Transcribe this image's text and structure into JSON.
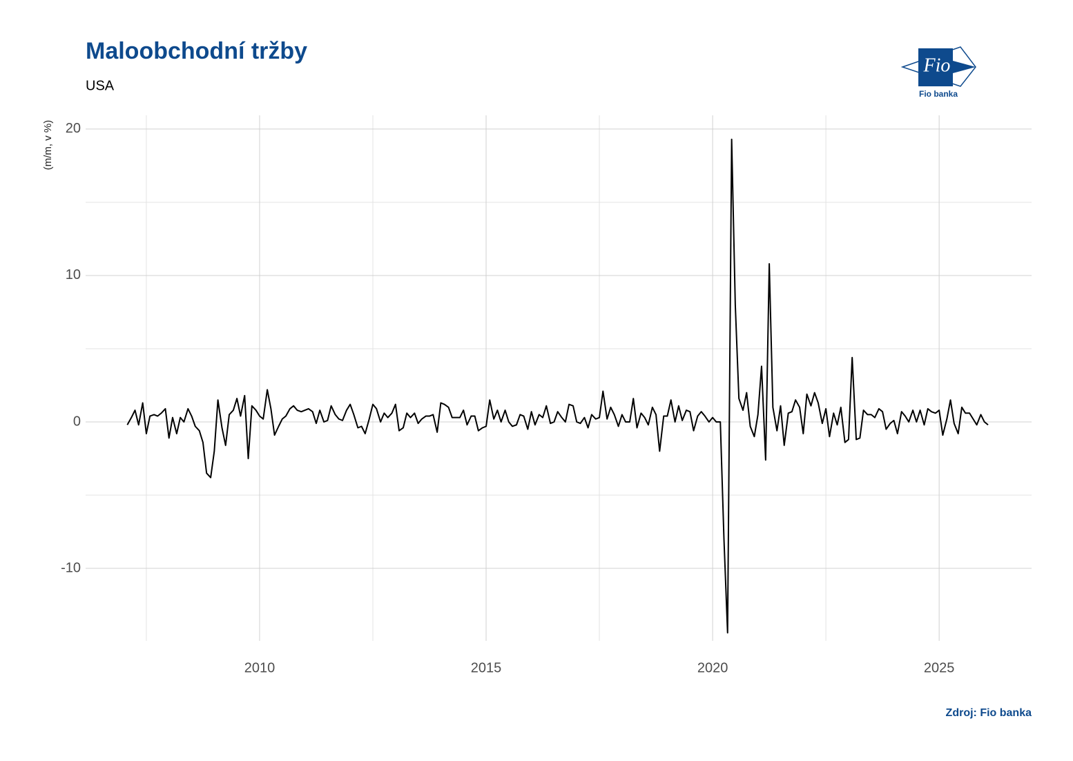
{
  "chart_data": {
    "type": "line",
    "title": "Maloobchodní tržby",
    "subtitle": "USA",
    "y_label": "(m/m, v %)",
    "source": "Zdroj: Fio banka",
    "logo_text": "Fio",
    "logo_caption": "Fio banka",
    "color": "#000000",
    "grid": true,
    "xlim": [
      2006.16,
      2027.04
    ],
    "xticks": [
      2010,
      2015,
      2020,
      2025
    ],
    "ylim": [
      -14.95,
      20.94
    ],
    "yticks": [
      -10,
      0,
      10,
      20
    ],
    "x": [
      2007.08,
      2007.17,
      2007.25,
      2007.33,
      2007.42,
      2007.5,
      2007.58,
      2007.67,
      2007.75,
      2007.83,
      2007.92,
      2008,
      2008.08,
      2008.17,
      2008.25,
      2008.33,
      2008.42,
      2008.5,
      2008.58,
      2008.67,
      2008.75,
      2008.83,
      2008.92,
      2009,
      2009.08,
      2009.17,
      2009.25,
      2009.33,
      2009.42,
      2009.5,
      2009.58,
      2009.67,
      2009.75,
      2009.83,
      2009.92,
      2010,
      2010.08,
      2010.17,
      2010.25,
      2010.33,
      2010.42,
      2010.5,
      2010.58,
      2010.67,
      2010.75,
      2010.83,
      2010.92,
      2011,
      2011.08,
      2011.17,
      2011.25,
      2011.33,
      2011.42,
      2011.5,
      2011.58,
      2011.67,
      2011.75,
      2011.83,
      2011.92,
      2012,
      2012.08,
      2012.17,
      2012.25,
      2012.33,
      2012.42,
      2012.5,
      2012.58,
      2012.67,
      2012.75,
      2012.83,
      2012.92,
      2013,
      2013.08,
      2013.17,
      2013.25,
      2013.33,
      2013.42,
      2013.5,
      2013.58,
      2013.67,
      2013.75,
      2013.83,
      2013.92,
      2014,
      2014.08,
      2014.17,
      2014.25,
      2014.33,
      2014.42,
      2014.5,
      2014.58,
      2014.67,
      2014.75,
      2014.83,
      2014.92,
      2015,
      2015.08,
      2015.17,
      2015.25,
      2015.33,
      2015.42,
      2015.5,
      2015.58,
      2015.67,
      2015.75,
      2015.83,
      2015.92,
      2016,
      2016.08,
      2016.17,
      2016.25,
      2016.33,
      2016.42,
      2016.5,
      2016.58,
      2016.67,
      2016.75,
      2016.83,
      2016.92,
      2017,
      2017.08,
      2017.17,
      2017.25,
      2017.33,
      2017.42,
      2017.5,
      2017.58,
      2017.67,
      2017.75,
      2017.83,
      2017.92,
      2018,
      2018.08,
      2018.17,
      2018.25,
      2018.33,
      2018.42,
      2018.5,
      2018.58,
      2018.67,
      2018.75,
      2018.83,
      2018.92,
      2019,
      2019.08,
      2019.17,
      2019.25,
      2019.33,
      2019.42,
      2019.5,
      2019.58,
      2019.67,
      2019.75,
      2019.83,
      2019.92,
      2020,
      2020.08,
      2020.17,
      2020.25,
      2020.33,
      2020.42,
      2020.5,
      2020.58,
      2020.67,
      2020.75,
      2020.83,
      2020.92,
      2021,
      2021.08,
      2021.17,
      2021.25,
      2021.33,
      2021.42,
      2021.5,
      2021.58,
      2021.67,
      2021.75,
      2021.83,
      2021.92,
      2022,
      2022.08,
      2022.17,
      2022.25,
      2022.33,
      2022.42,
      2022.5,
      2022.58,
      2022.67,
      2022.75,
      2022.83,
      2022.92,
      2023,
      2023.08,
      2023.17,
      2023.25,
      2023.33,
      2023.42,
      2023.5,
      2023.58,
      2023.67,
      2023.75,
      2023.83,
      2023.92,
      2024,
      2024.08,
      2024.17,
      2024.25,
      2024.33,
      2024.42,
      2024.5,
      2024.58,
      2024.67,
      2024.75,
      2024.83,
      2024.92,
      2025,
      2025.08,
      2025.17,
      2025.25,
      2025.33,
      2025.42,
      2025.5,
      2025.58,
      2025.67,
      2025.75,
      2025.83,
      2025.92,
      2026,
      2026.08
    ],
    "values": [
      -0.2,
      0.3,
      0.8,
      -0.2,
      1.3,
      -0.8,
      0.4,
      0.5,
      0.4,
      0.6,
      0.9,
      -1.1,
      0.3,
      -0.8,
      0.3,
      0.0,
      0.9,
      0.4,
      -0.3,
      -0.6,
      -1.4,
      -3.5,
      -3.8,
      -2.0,
      1.5,
      -0.4,
      -1.6,
      0.5,
      0.8,
      1.6,
      0.4,
      1.8,
      -2.5,
      1.1,
      0.8,
      0.4,
      0.2,
      2.2,
      0.9,
      -0.9,
      -0.3,
      0.2,
      0.4,
      0.9,
      1.1,
      0.8,
      0.7,
      0.8,
      0.9,
      0.7,
      -0.1,
      0.8,
      0.0,
      0.1,
      1.1,
      0.5,
      0.2,
      0.1,
      0.8,
      1.2,
      0.5,
      -0.4,
      -0.3,
      -0.8,
      0.2,
      1.2,
      0.9,
      0.0,
      0.6,
      0.3,
      0.6,
      1.2,
      -0.6,
      -0.4,
      0.6,
      0.3,
      0.6,
      -0.1,
      0.2,
      0.4,
      0.4,
      0.5,
      -0.7,
      1.3,
      1.2,
      1.0,
      0.3,
      0.3,
      0.3,
      0.8,
      -0.2,
      0.4,
      0.4,
      -0.6,
      -0.4,
      -0.3,
      1.5,
      0.2,
      0.8,
      0.0,
      0.8,
      0.0,
      -0.3,
      -0.2,
      0.5,
      0.4,
      -0.5,
      0.7,
      -0.2,
      0.5,
      0.3,
      1.1,
      -0.1,
      0.0,
      0.7,
      0.3,
      0.0,
      1.2,
      1.1,
      0.0,
      -0.1,
      0.3,
      -0.4,
      0.5,
      0.2,
      0.3,
      2.1,
      0.2,
      1.0,
      0.5,
      -0.3,
      0.5,
      0.0,
      0.0,
      1.6,
      -0.4,
      0.6,
      0.3,
      -0.2,
      1.0,
      0.5,
      -2.0,
      0.4,
      0.4,
      1.5,
      0.0,
      1.1,
      0.1,
      0.8,
      0.7,
      -0.6,
      0.4,
      0.7,
      0.4,
      0.0,
      0.3,
      0.0,
      0.0,
      -8.0,
      -14.4,
      19.3,
      8.0,
      1.6,
      0.8,
      2.0,
      -0.3,
      -1.0,
      0.5,
      3.8,
      -2.6,
      10.8,
      1.0,
      -0.6,
      1.1,
      -1.6,
      0.6,
      0.7,
      1.5,
      1.0,
      -0.8,
      1.9,
      1.1,
      2.0,
      1.3,
      -0.1,
      0.9,
      -1.0,
      0.6,
      -0.2,
      1.0,
      -1.4,
      -1.2,
      4.4,
      -1.2,
      -1.1,
      0.8,
      0.5,
      0.5,
      0.3,
      0.9,
      0.7,
      -0.5,
      -0.1,
      0.1,
      -0.8,
      0.7,
      0.4,
      0.0,
      0.8,
      0.0,
      0.8,
      -0.2,
      0.9,
      0.7,
      0.6,
      0.8,
      -0.9,
      0.2,
      1.5,
      -0.1,
      -0.8,
      1.0,
      0.6,
      0.6,
      0.2,
      -0.2,
      0.5,
      0.0,
      -0.2
    ]
  }
}
